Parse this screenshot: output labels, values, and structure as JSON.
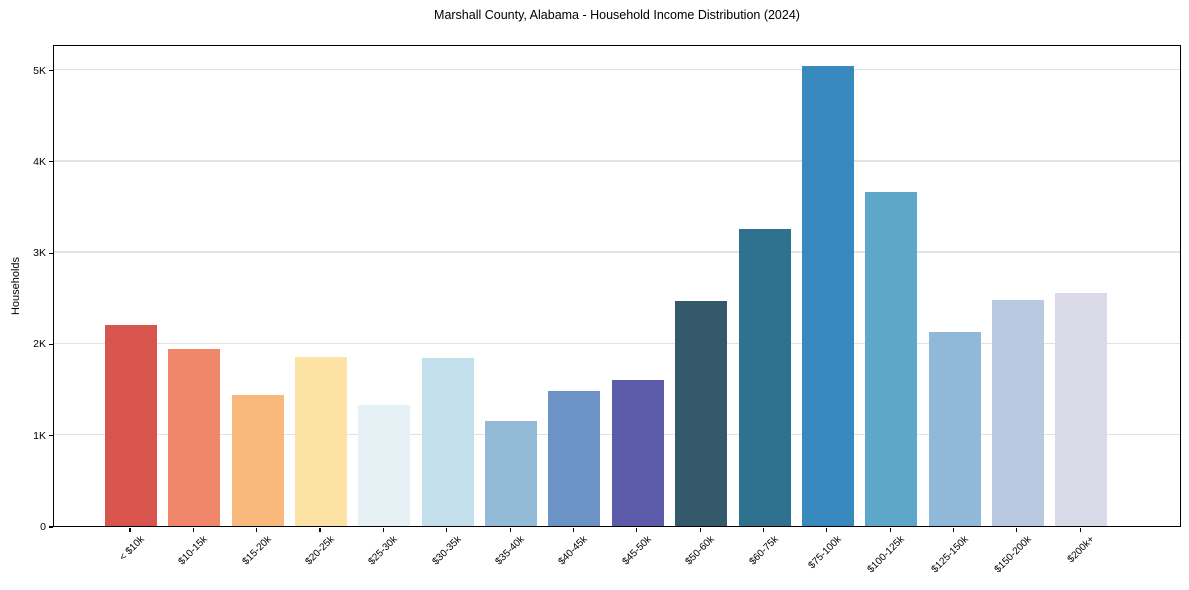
{
  "chart_data": {
    "type": "bar",
    "title": "Marshall County, Alabama - Household Income Distribution (2024)",
    "xlabel": "",
    "ylabel": "Households",
    "categories": [
      "< $10k",
      "$10-15k",
      "$15-20k",
      "$20-25k",
      "$25-30k",
      "$30-35k",
      "$35-40k",
      "$40-45k",
      "$45-50k",
      "$50-60k",
      "$60-75k",
      "$75-100k",
      "$100-125k",
      "$125-150k",
      "$150-200k",
      "$200k+"
    ],
    "values": [
      2200,
      1940,
      1440,
      1850,
      1330,
      1840,
      1150,
      1480,
      1600,
      2460,
      3250,
      5040,
      3660,
      2130,
      2480,
      2550
    ],
    "bar_colors": [
      "#d8554e",
      "#f0876b",
      "#f9b97c",
      "#fce3a4",
      "#e6f1f5",
      "#c3dfec",
      "#93bbd8",
      "#6b93c5",
      "#5c5cab",
      "#34596b",
      "#2f7290",
      "#3889bd",
      "#5fa6cb",
      "#90b8d8",
      "#b8c9e0",
      "#d9d9e7"
    ],
    "ylim": [
      0,
      5280
    ],
    "yticks": {
      "values": [
        0,
        1000,
        2000,
        3000,
        4000,
        5000
      ],
      "labels": [
        "0",
        "1K",
        "2K",
        "3K",
        "4K",
        "5K"
      ]
    },
    "grid": "horizontal-y",
    "legend": "none",
    "style_colors": {
      "grid": "#e2e2e2",
      "spine": "#000000",
      "text": "#000000",
      "background": "#ffffff"
    }
  }
}
